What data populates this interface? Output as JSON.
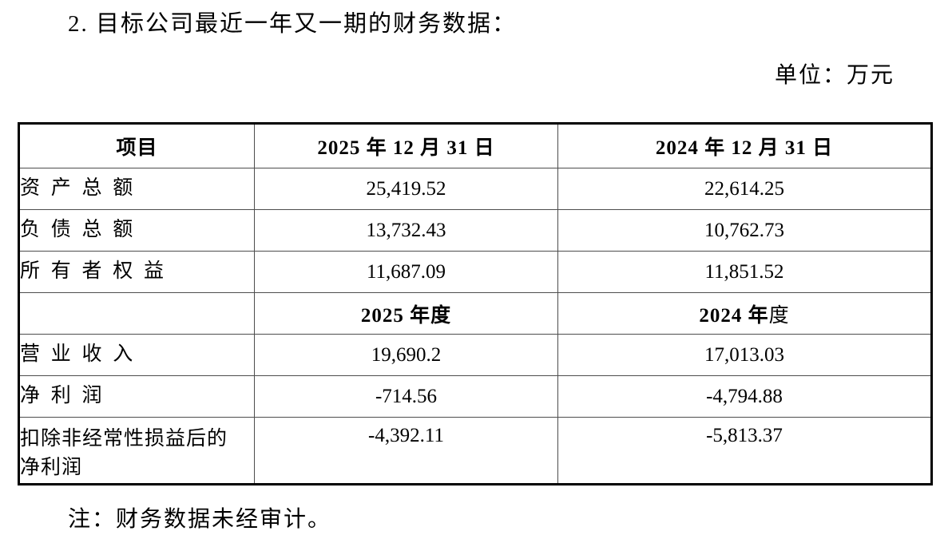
{
  "page": {
    "title": "2. 目标公司最近一年又一期的财务数据：",
    "unit_label": "单位：万元",
    "note": "注：财务数据未经审计。"
  },
  "table": {
    "header": [
      "项目",
      "2025 年 12 月 31 日",
      "2024 年 12 月 31 日"
    ],
    "balance_rows": [
      {
        "item": "资产总额",
        "v2025": "25,419.52",
        "v2024": "22,614.25"
      },
      {
        "item": "负债总额",
        "v2025": "13,732.43",
        "v2024": "10,762.73"
      },
      {
        "item": "所有者权益",
        "v2025": "11,687.09",
        "v2024": "11,851.52"
      }
    ],
    "period_header": {
      "item": "",
      "col2": {
        "bold_part": "2025 年度",
        "regular_part": ""
      },
      "col3": {
        "bold_part": "2024 年",
        "regular_part": "度"
      }
    },
    "income_rows": [
      {
        "item": "营业收入",
        "v2025": "19,690.2",
        "v2024": "17,013.03"
      },
      {
        "item": "净利润",
        "v2025": "-714.56",
        "v2024": "-4,794.88"
      },
      {
        "item": "扣除非经常性损益后的净利润",
        "v2025": "-4,392.11",
        "v2024": "-5,813.37"
      }
    ]
  }
}
